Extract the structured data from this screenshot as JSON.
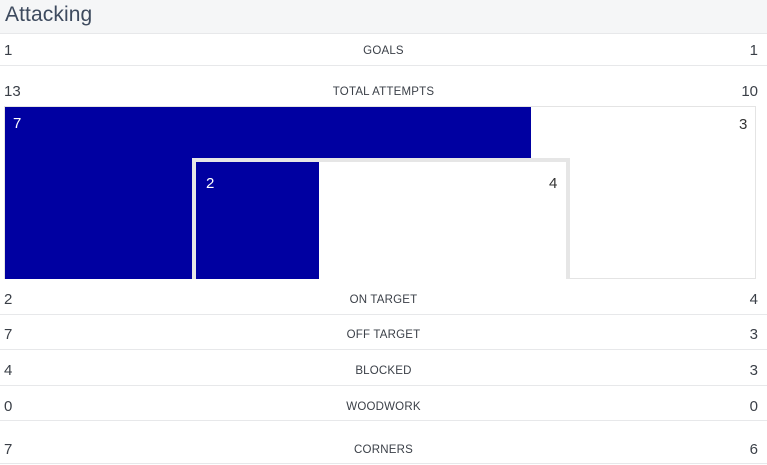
{
  "section": {
    "title": "Attacking"
  },
  "colors": {
    "home": "#0000a1",
    "frame": "#e6e6e6",
    "title": "#3d4a5e"
  },
  "rows": {
    "goals": {
      "home": "1",
      "label": "GOALS",
      "away": "1"
    },
    "total_attempts": {
      "home": "13",
      "label": "TOTAL ATTEMPTS",
      "away": "10"
    },
    "on_target": {
      "home": "2",
      "label": "ON TARGET",
      "away": "4"
    },
    "off_target": {
      "home": "7",
      "label": "OFF TARGET",
      "away": "3"
    },
    "blocked": {
      "home": "4",
      "label": "BLOCKED",
      "away": "3"
    },
    "woodwork": {
      "home": "0",
      "label": "WOODWORK",
      "away": "0"
    },
    "corners": {
      "home": "7",
      "label": "CORNERS",
      "away": "6"
    }
  },
  "attempts_graphic": {
    "off_target_home": "7",
    "off_target_away": "3",
    "on_target_home": "2",
    "on_target_away": "4"
  }
}
